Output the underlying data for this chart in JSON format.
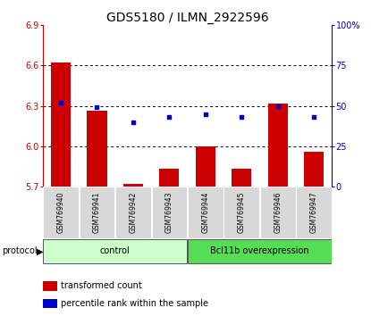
{
  "title": "GDS5180 / ILMN_2922596",
  "samples": [
    "GSM769940",
    "GSM769941",
    "GSM769942",
    "GSM769943",
    "GSM769944",
    "GSM769945",
    "GSM769946",
    "GSM769947"
  ],
  "transformed_count": [
    6.625,
    6.265,
    5.718,
    5.83,
    6.0,
    5.83,
    6.32,
    5.955
  ],
  "percentile_rank": [
    52,
    49,
    40,
    43,
    45,
    43,
    50,
    43
  ],
  "ylim_left": [
    5.7,
    6.9
  ],
  "ylim_right": [
    0,
    100
  ],
  "yticks_left": [
    5.7,
    6.0,
    6.3,
    6.6,
    6.9
  ],
  "yticks_right": [
    0,
    25,
    50,
    75,
    100
  ],
  "ytick_labels_right": [
    "0",
    "25",
    "50",
    "75",
    "100%"
  ],
  "bar_color": "#cc0000",
  "scatter_color": "#0000cc",
  "grid_dotted_color": "#000000",
  "control_label": "control",
  "overexp_label": "Bcl11b overexpression",
  "control_color": "#ccffcc",
  "overexp_color": "#55dd55",
  "protocol_label": "protocol",
  "legend_bar_label": "transformed count",
  "legend_scatter_label": "percentile rank within the sample",
  "title_fontsize": 10,
  "tick_label_fontsize": 7,
  "sample_fontsize": 5.5,
  "protocol_fontsize": 7,
  "legend_fontsize": 7
}
